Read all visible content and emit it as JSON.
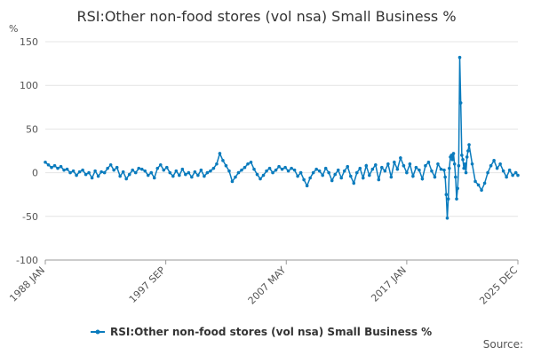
{
  "chart_data": {
    "type": "line",
    "title": "RSI:Other non-food stores (vol nsa) Small Business %",
    "y_label": "%",
    "source": "Source:",
    "x": [
      1988,
      1988.25,
      1988.5,
      1988.75,
      1989,
      1989.25,
      1989.5,
      1989.75,
      1990,
      1990.25,
      1990.5,
      1990.75,
      1991,
      1991.25,
      1991.5,
      1991.75,
      1992,
      1992.25,
      1992.5,
      1992.75,
      1993,
      1993.25,
      1993.5,
      1993.75,
      1994,
      1994.25,
      1994.5,
      1994.75,
      1995,
      1995.25,
      1995.5,
      1995.75,
      1996,
      1996.25,
      1996.5,
      1996.75,
      1997,
      1997.25,
      1997.5,
      1997.75,
      1998,
      1998.25,
      1998.5,
      1998.75,
      1999,
      1999.25,
      1999.5,
      1999.75,
      2000,
      2000.25,
      2000.5,
      2000.75,
      2001,
      2001.25,
      2001.5,
      2001.75,
      2002,
      2002.25,
      2002.5,
      2002.75,
      2003,
      2003.25,
      2003.5,
      2003.75,
      2004,
      2004.25,
      2004.5,
      2004.75,
      2005,
      2005.25,
      2005.5,
      2005.75,
      2006,
      2006.25,
      2006.5,
      2006.75,
      2007,
      2007.25,
      2007.5,
      2007.75,
      2008,
      2008.25,
      2008.5,
      2008.75,
      2009,
      2009.25,
      2009.5,
      2009.75,
      2010,
      2010.25,
      2010.5,
      2010.75,
      2011,
      2011.25,
      2011.5,
      2011.75,
      2012,
      2012.25,
      2012.5,
      2012.75,
      2013,
      2013.25,
      2013.5,
      2013.75,
      2014,
      2014.25,
      2014.5,
      2014.75,
      2015,
      2015.25,
      2015.5,
      2015.75,
      2016,
      2016.25,
      2016.5,
      2016.75,
      2017,
      2017.25,
      2017.5,
      2017.75,
      2018,
      2018.25,
      2018.5,
      2018.75,
      2019,
      2019.25,
      2019.5,
      2019.75,
      2020,
      2020.083,
      2020.167,
      2020.25,
      2020.333,
      2020.417,
      2020.5,
      2020.583,
      2020.667,
      2020.75,
      2020.833,
      2020.917,
      2021,
      2021.083,
      2021.167,
      2021.25,
      2021.333,
      2021.417,
      2021.5,
      2021.583,
      2021.667,
      2021.75,
      2021.833,
      2021.917,
      2022,
      2022.25,
      2022.5,
      2022.75,
      2023,
      2023.25,
      2023.5,
      2023.75,
      2024,
      2024.25,
      2024.5,
      2024.75,
      2025,
      2025.25,
      2025.5,
      2025.75,
      2025.917
    ],
    "series": [
      {
        "name": "RSI:Other non-food stores (vol nsa) Small Business %",
        "color": "#0a7bbd",
        "values": [
          12,
          9,
          6,
          8,
          5,
          7,
          3,
          4,
          0,
          2,
          -3,
          1,
          3,
          -2,
          0,
          -6,
          2,
          -4,
          1,
          0,
          5,
          9,
          3,
          6,
          -4,
          1,
          -7,
          -2,
          3,
          0,
          5,
          4,
          2,
          -3,
          0,
          -6,
          5,
          9,
          3,
          6,
          0,
          -4,
          2,
          -3,
          4,
          -2,
          0,
          -5,
          1,
          -3,
          3,
          -4,
          0,
          2,
          5,
          10,
          22,
          14,
          8,
          2,
          -10,
          -5,
          0,
          3,
          6,
          10,
          12,
          4,
          -2,
          -7,
          -3,
          2,
          5,
          0,
          3,
          7,
          4,
          6,
          2,
          5,
          3,
          -4,
          0,
          -8,
          -15,
          -6,
          0,
          4,
          2,
          -3,
          5,
          0,
          -9,
          -2,
          3,
          -6,
          2,
          7,
          -4,
          -12,
          0,
          5,
          -6,
          8,
          -3,
          4,
          9,
          -8,
          6,
          2,
          10,
          -5,
          12,
          4,
          17,
          8,
          0,
          10,
          -4,
          6,
          3,
          -7,
          8,
          12,
          2,
          -5,
          10,
          4,
          3,
          -5,
          -25,
          -52,
          -30,
          5,
          18,
          20,
          15,
          22,
          10,
          -5,
          -30,
          -18,
          8,
          132,
          80,
          20,
          15,
          5,
          10,
          0,
          18,
          25,
          32,
          10,
          -10,
          -14,
          -20,
          -12,
          0,
          8,
          14,
          5,
          10,
          2,
          -5,
          3,
          -3,
          0,
          -3
        ]
      }
    ],
    "xlim": [
      1988,
      2025.917
    ],
    "xticks": [
      {
        "value": 1988,
        "label": "1988 JAN"
      },
      {
        "value": 1997.667,
        "label": "1997 SEP"
      },
      {
        "value": 2007.333,
        "label": "2007 MAY"
      },
      {
        "value": 2017,
        "label": "2017 JAN"
      },
      {
        "value": 2025.917,
        "label": "2025 DEC"
      }
    ],
    "ylim": [
      -100,
      150
    ],
    "yticks": [
      -100,
      -50,
      0,
      50,
      100,
      150
    ],
    "grid": true
  }
}
